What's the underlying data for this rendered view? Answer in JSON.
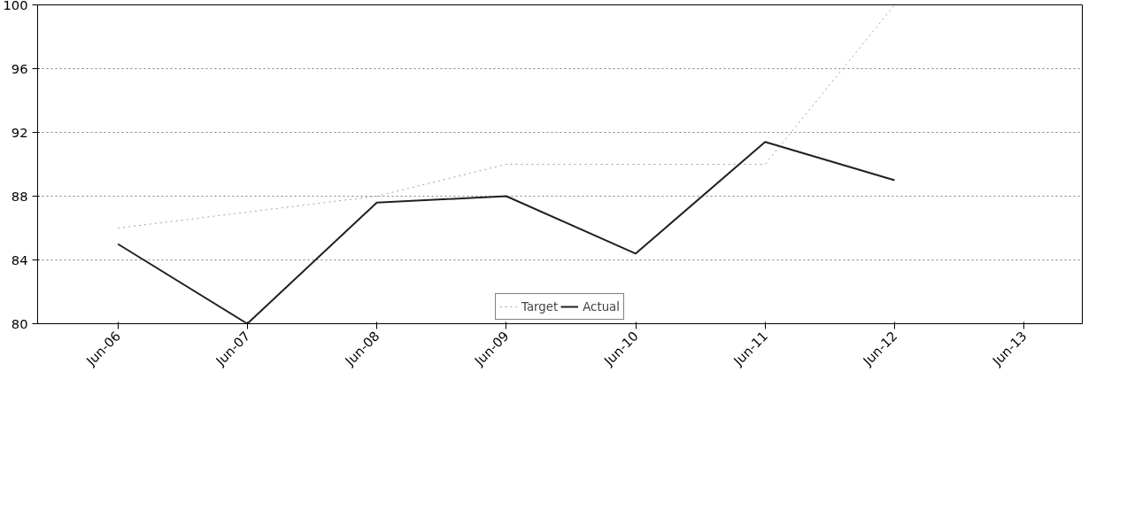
{
  "chart_data": {
    "type": "line",
    "categories": [
      "Jun-06",
      "Jun-07",
      "Jun-08",
      "Jun-09",
      "Jun-10",
      "Jun-11",
      "Jun-12",
      "Jun-13"
    ],
    "series": [
      {
        "name": "Target",
        "color": "#a0a0a0",
        "line_style": "dotted",
        "values": [
          86,
          87,
          88,
          90,
          90,
          90,
          100,
          null
        ]
      },
      {
        "name": "Actual",
        "color": "#202020",
        "line_style": "solid",
        "values": [
          85,
          80,
          87.6,
          88,
          84.4,
          91.4,
          89,
          null
        ]
      }
    ],
    "ylim": [
      80,
      100
    ],
    "yticks": [
      80,
      84,
      88,
      92,
      96,
      100
    ],
    "grid": "y",
    "legend": "bottom",
    "marker": "none"
  }
}
